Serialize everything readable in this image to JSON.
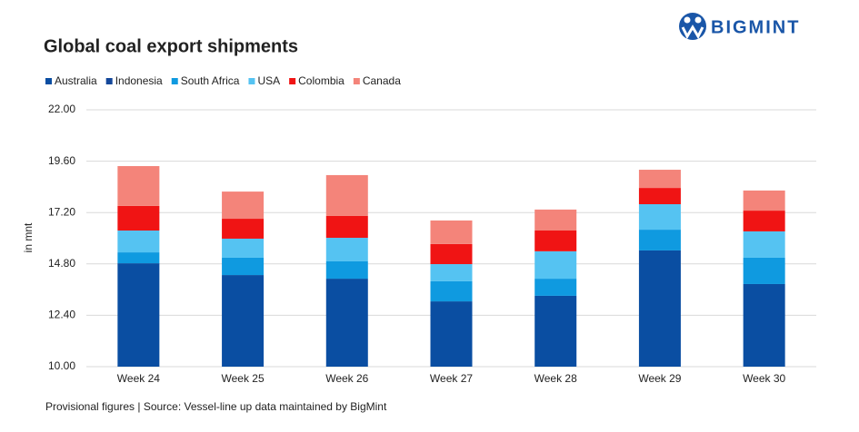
{
  "brand": "BIGMINT",
  "footer": "Provisional figures | Source: Vessel-line up data maintained by BigMint",
  "chart_data": {
    "type": "stacked-bar",
    "title": "Global coal export shipments",
    "y_label": "in mnt",
    "categories": [
      "Week 24",
      "Week 25",
      "Week 26",
      "Week 27",
      "Week 28",
      "Week 29",
      "Week 30"
    ],
    "series": [
      {
        "name": "Australia",
        "color": "#0a4ea2",
        "values": [
          14.83,
          14.28,
          14.11,
          13.05,
          13.31,
          15.43,
          13.86
        ]
      },
      {
        "name": "Indonesia",
        "color": "#14479a",
        "values": [
          null,
          null,
          null,
          null,
          null,
          null,
          null
        ]
      },
      {
        "name": "South Africa",
        "color": "#0f9ae0",
        "values": [
          0.51,
          0.81,
          0.81,
          0.94,
          0.8,
          0.97,
          1.23
        ]
      },
      {
        "name": "USA",
        "color": "#55c3f2",
        "values": [
          1.02,
          0.89,
          1.1,
          0.8,
          1.28,
          1.19,
          1.23
        ]
      },
      {
        "name": "Colombia",
        "color": "#f01414",
        "values": [
          1.15,
          0.93,
          1.02,
          0.94,
          0.97,
          0.76,
          0.97
        ]
      },
      {
        "name": "Canada",
        "color": "#f4847a",
        "values": [
          1.86,
          1.27,
          1.91,
          1.1,
          0.98,
          0.85,
          0.94
        ]
      }
    ],
    "ylim": [
      10,
      22
    ],
    "yticks": [
      {
        "value": 10,
        "label": "10.00"
      },
      {
        "value": 12.4,
        "label": "12.40"
      },
      {
        "value": 14.8,
        "label": "14.80"
      },
      {
        "value": 17.2,
        "label": "17.20"
      },
      {
        "value": 19.6,
        "label": "19.60"
      },
      {
        "value": 22,
        "label": "22.00"
      }
    ],
    "grid": true
  }
}
